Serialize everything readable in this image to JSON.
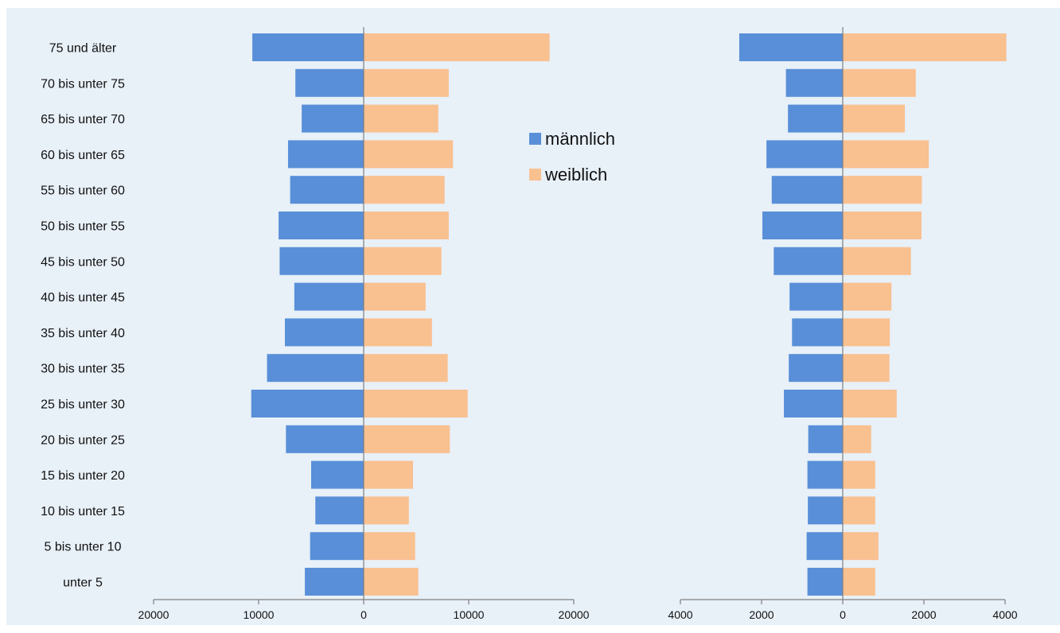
{
  "chart_data": [
    {
      "type": "bar",
      "orientation": "horizontal",
      "layout": "population-pyramid",
      "categories": [
        "75 und älter",
        "70 bis unter 75",
        "65 bis unter 70",
        "60 bis unter 65",
        "55 bis unter 60",
        "50 bis unter 55",
        "45 bis unter 50",
        "40 bis unter 45",
        "35 bis unter 40",
        "30 bis unter 35",
        "25 bis unter 30",
        "20 bis unter 25",
        "15 bis unter 20",
        "10 bis unter 15",
        "5 bis unter 10",
        "unter 5"
      ],
      "series": [
        {
          "name": "männlich",
          "color": "#588fd8",
          "values": [
            10600,
            6500,
            5900,
            7200,
            7000,
            8100,
            8000,
            6600,
            7500,
            9200,
            10700,
            7400,
            5000,
            4600,
            5100,
            5600
          ]
        },
        {
          "name": "weiblich",
          "color": "#f9c090",
          "values": [
            17700,
            8100,
            7100,
            8500,
            7700,
            8100,
            7400,
            5900,
            6500,
            8000,
            9900,
            8200,
            4700,
            4300,
            4900,
            5200
          ]
        }
      ],
      "xlim": [
        -20000,
        20000
      ],
      "x_ticks": [
        "20000",
        "10000",
        "0",
        "10000",
        "20000"
      ],
      "legend": {
        "entries": [
          "männlich",
          "weiblich"
        ],
        "placement": "center"
      }
    },
    {
      "type": "bar",
      "orientation": "horizontal",
      "layout": "population-pyramid",
      "series": [
        {
          "name": "männlich",
          "color": "#588fd8",
          "values": [
            2550,
            1400,
            1350,
            1880,
            1750,
            1980,
            1700,
            1310,
            1250,
            1330,
            1450,
            850,
            870,
            860,
            890,
            870
          ]
        },
        {
          "name": "weiblich",
          "color": "#f9c090",
          "values": [
            4030,
            1800,
            1530,
            2120,
            1950,
            1940,
            1680,
            1200,
            1160,
            1150,
            1330,
            700,
            800,
            800,
            880,
            800
          ]
        }
      ],
      "xlim": [
        -4000,
        4000
      ],
      "x_ticks": [
        "4000",
        "2000",
        "0",
        "2000",
        "4000"
      ]
    }
  ]
}
